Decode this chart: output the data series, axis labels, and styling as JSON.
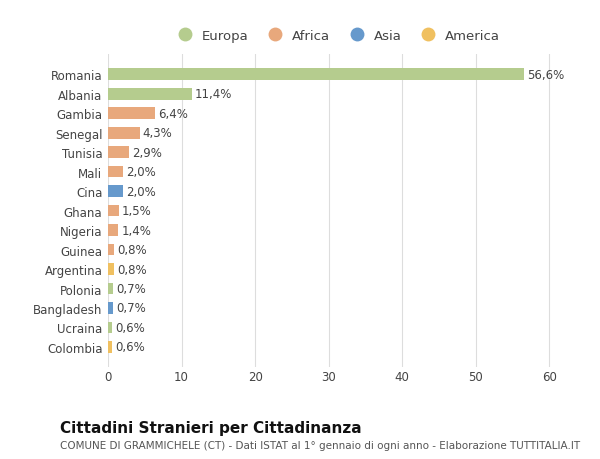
{
  "countries": [
    "Romania",
    "Albania",
    "Gambia",
    "Senegal",
    "Tunisia",
    "Mali",
    "Cina",
    "Ghana",
    "Nigeria",
    "Guinea",
    "Argentina",
    "Polonia",
    "Bangladesh",
    "Ucraina",
    "Colombia"
  ],
  "values": [
    56.6,
    11.4,
    6.4,
    4.3,
    2.9,
    2.0,
    2.0,
    1.5,
    1.4,
    0.8,
    0.8,
    0.7,
    0.7,
    0.6,
    0.6
  ],
  "labels": [
    "56,6%",
    "11,4%",
    "6,4%",
    "4,3%",
    "2,9%",
    "2,0%",
    "2,0%",
    "1,5%",
    "1,4%",
    "0,8%",
    "0,8%",
    "0,7%",
    "0,7%",
    "0,6%",
    "0,6%"
  ],
  "continents": [
    "Europa",
    "Europa",
    "Africa",
    "Africa",
    "Africa",
    "Africa",
    "Asia",
    "Africa",
    "Africa",
    "Africa",
    "America",
    "Europa",
    "Asia",
    "Europa",
    "America"
  ],
  "continent_colors": {
    "Europa": "#b5cc8e",
    "Africa": "#e8a87c",
    "Asia": "#6699cc",
    "America": "#f0c060"
  },
  "legend_order": [
    "Europa",
    "Africa",
    "Asia",
    "America"
  ],
  "title": "Cittadini Stranieri per Cittadinanza",
  "subtitle": "COMUNE DI GRAMMICHELE (CT) - Dati ISTAT al 1° gennaio di ogni anno - Elaborazione TUTTITALIA.IT",
  "xlim": [
    0,
    62
  ],
  "xticks": [
    0,
    10,
    20,
    30,
    40,
    50,
    60
  ],
  "bg_color": "#ffffff",
  "grid_color": "#dddddd",
  "bar_height": 0.6,
  "label_fontsize": 8.5,
  "title_fontsize": 11,
  "subtitle_fontsize": 7.5,
  "tick_fontsize": 8.5,
  "legend_fontsize": 9.5
}
